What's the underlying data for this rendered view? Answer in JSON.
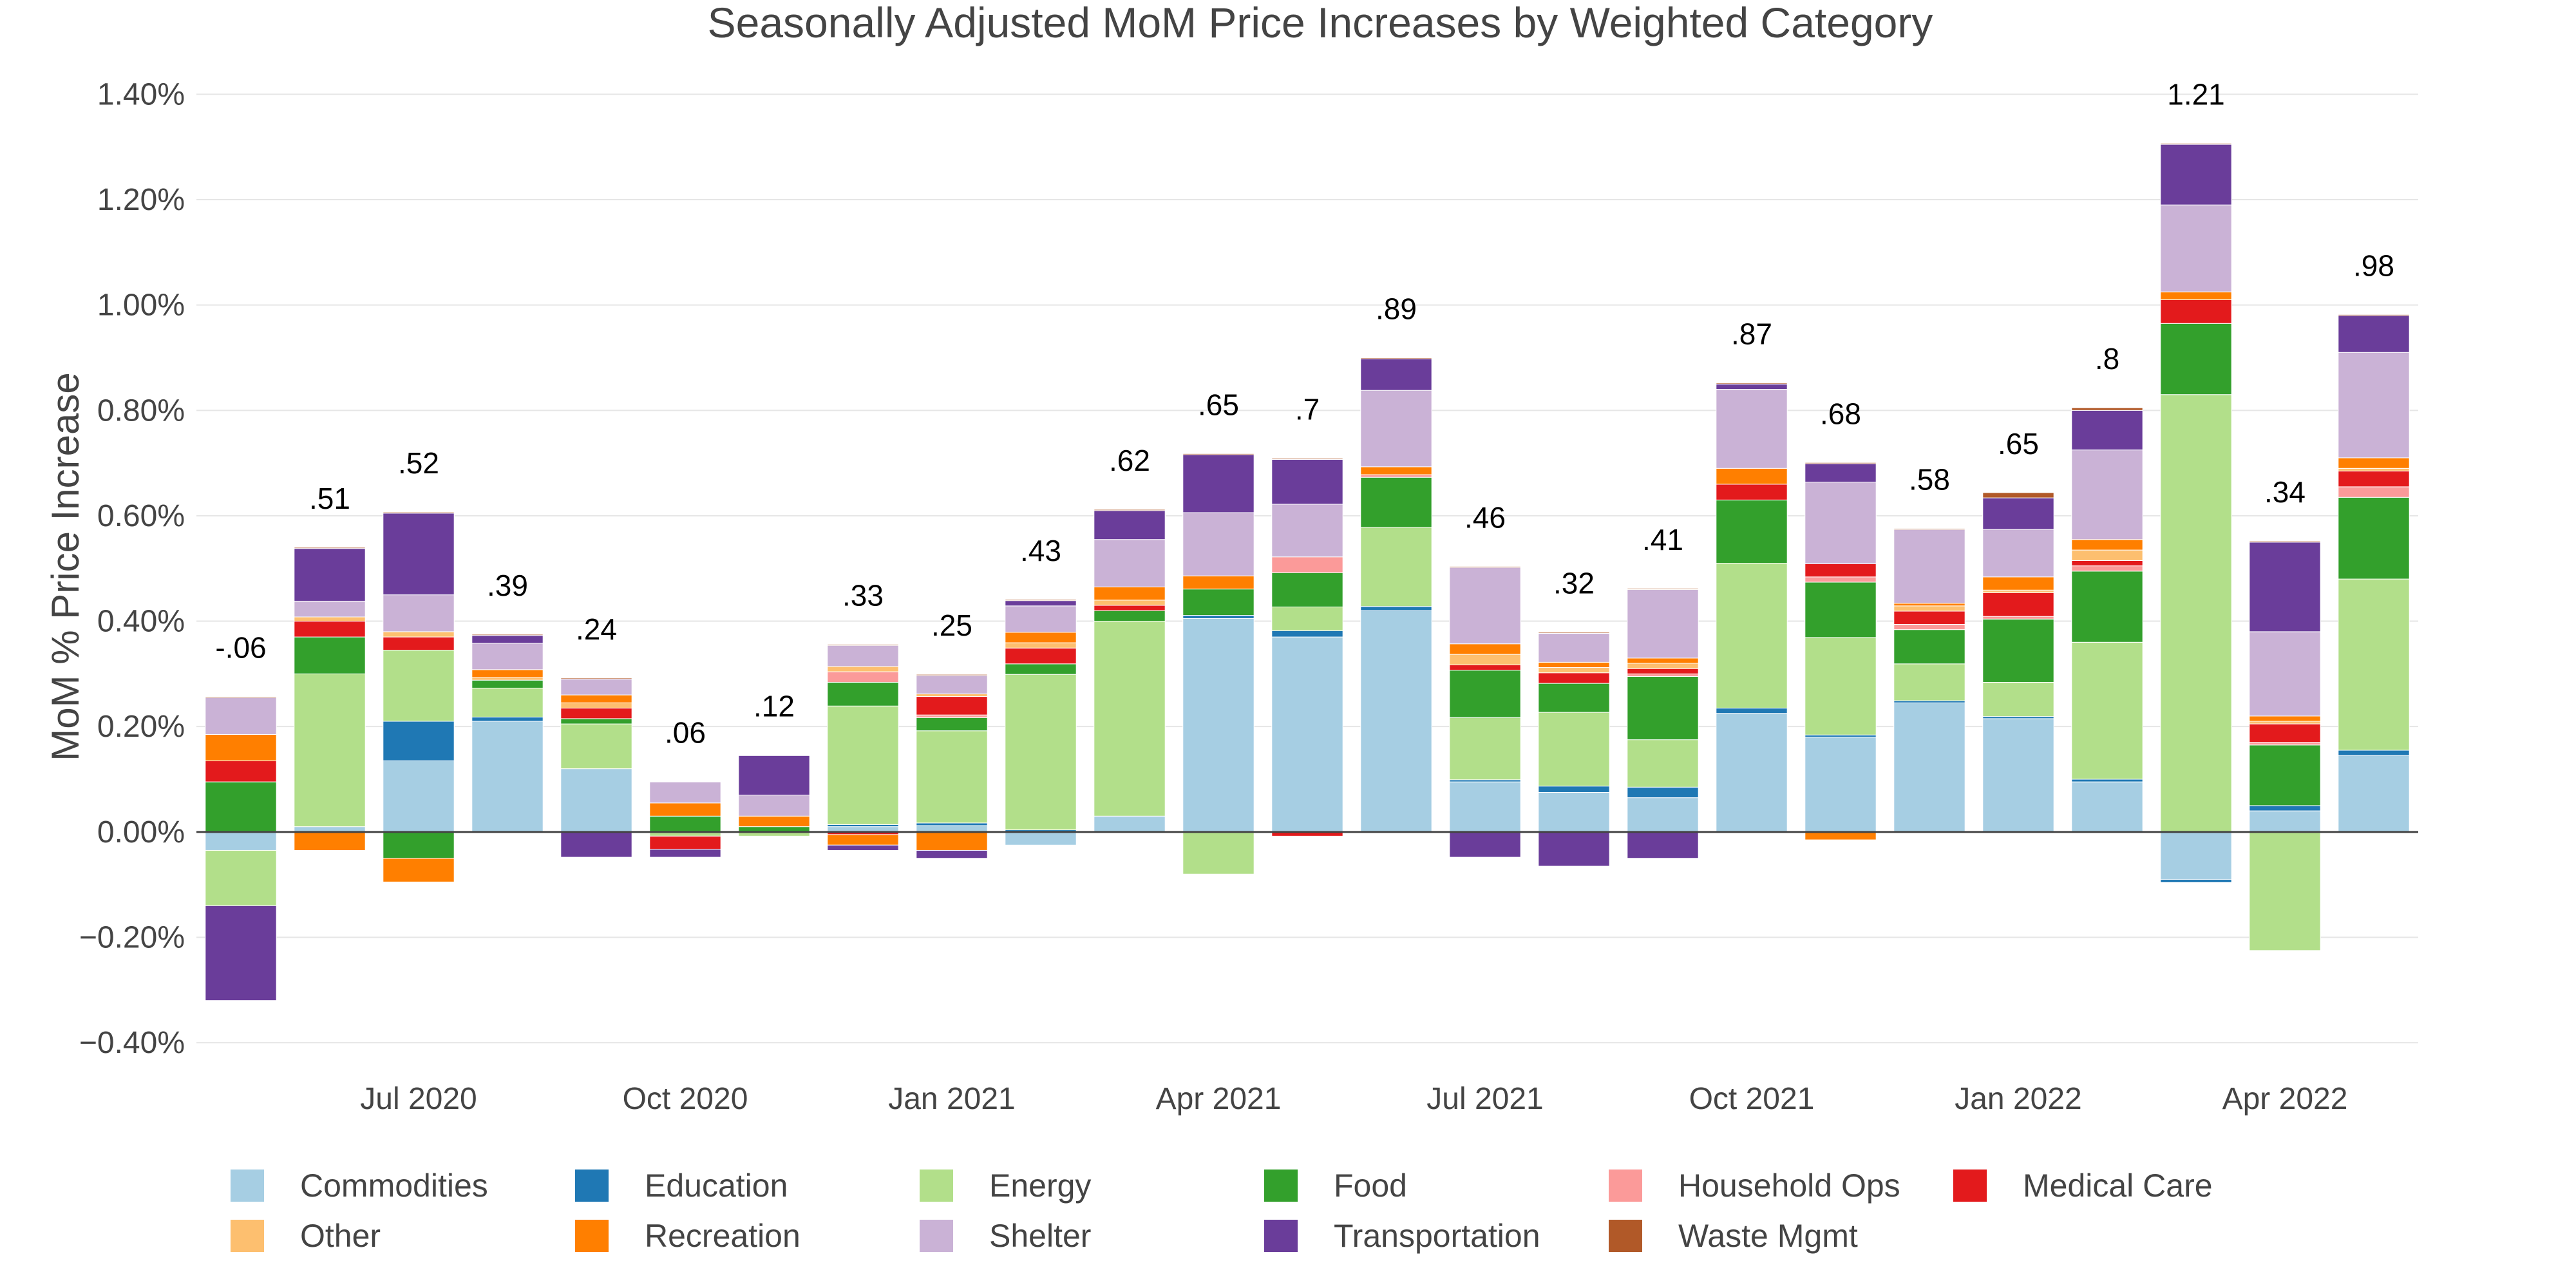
{
  "chart_data": {
    "type": "bar",
    "stacked": "relative",
    "title": "Seasonally Adjusted MoM Price Increases by Weighted Category",
    "xlabel": "",
    "ylabel": "MoM % Price Increase",
    "ylim": [
      -0.45,
      1.42
    ],
    "yticks": [
      -0.4,
      -0.2,
      0.0,
      0.2,
      0.4,
      0.6,
      0.8,
      1.0,
      1.2,
      1.4
    ],
    "ytick_labels": [
      "−0.40%",
      "−0.20%",
      "0.00%",
      "0.20%",
      "0.40%",
      "0.60%",
      "0.80%",
      "1.00%",
      "1.20%",
      "1.40%"
    ],
    "x_tick_positions": [
      2,
      5,
      8,
      11,
      14,
      17,
      20,
      23
    ],
    "x_tick_labels": [
      "Jul 2020",
      "Oct 2020",
      "Jan 2021",
      "Apr 2021",
      "Jul 2021",
      "Oct 2021",
      "Jan 2022",
      "Apr 2022"
    ],
    "categories": [
      "2020-05",
      "2020-06",
      "2020-07",
      "2020-08",
      "2020-09",
      "2020-10",
      "2020-11",
      "2020-12",
      "2021-01",
      "2021-02",
      "2021-03",
      "2021-04",
      "2021-05",
      "2021-06",
      "2021-07",
      "2021-08",
      "2021-09",
      "2021-10",
      "2021-11",
      "2021-12",
      "2022-01",
      "2022-02",
      "2022-03",
      "2022-04",
      "2022-05"
    ],
    "totals": [
      -0.06,
      0.51,
      0.52,
      0.39,
      0.24,
      0.06,
      0.12,
      0.33,
      0.25,
      0.43,
      0.62,
      0.65,
      0.7,
      0.89,
      0.46,
      0.32,
      0.41,
      0.87,
      0.68,
      0.58,
      0.65,
      0.8,
      1.21,
      0.34,
      0.98
    ],
    "total_labels": [
      "-.06",
      ".51",
      ".52",
      ".39",
      ".24",
      ".06",
      ".12",
      ".33",
      ".25",
      ".43",
      ".62",
      ".65",
      ".7",
      ".89",
      ".46",
      ".32",
      ".41",
      ".87",
      ".68",
      ".58",
      ".65",
      ".8",
      "1.21",
      ".34",
      ".98"
    ],
    "total_colors": {
      "positive": "#000000",
      "negative": "#d62728"
    },
    "legend_position": "bottom",
    "legend_rows": 2,
    "series": [
      {
        "name": "Commodities",
        "color": "#a6cee3",
        "values": [
          -0.035,
          0.01,
          0.135,
          0.21,
          0.12,
          0.0,
          0.0,
          0.01,
          0.012,
          -0.025,
          0.03,
          0.405,
          0.37,
          0.42,
          0.095,
          0.075,
          0.065,
          0.225,
          0.18,
          0.245,
          0.215,
          0.095,
          -0.09,
          0.04,
          0.145
        ]
      },
      {
        "name": "Education",
        "color": "#1f78b4",
        "values": [
          0.0,
          0.0,
          0.075,
          0.008,
          0.0,
          0.0,
          0.0,
          0.004,
          0.005,
          0.004,
          0.0,
          0.006,
          0.012,
          0.008,
          0.004,
          0.012,
          0.02,
          0.01,
          0.004,
          0.004,
          0.004,
          0.005,
          -0.006,
          0.01,
          0.01
        ]
      },
      {
        "name": "Energy",
        "color": "#b2df8a",
        "values": [
          -0.105,
          0.29,
          0.135,
          0.055,
          0.085,
          -0.008,
          -0.008,
          0.225,
          0.175,
          0.295,
          0.37,
          -0.08,
          0.045,
          0.15,
          0.118,
          0.14,
          0.09,
          0.275,
          0.185,
          0.07,
          0.065,
          0.26,
          0.83,
          -0.225,
          0.325
        ]
      },
      {
        "name": "Food",
        "color": "#33a02c",
        "values": [
          0.095,
          0.07,
          -0.05,
          0.015,
          0.01,
          0.03,
          0.01,
          0.045,
          0.025,
          0.02,
          0.02,
          0.05,
          0.065,
          0.095,
          0.09,
          0.055,
          0.12,
          0.12,
          0.105,
          0.065,
          0.12,
          0.135,
          0.135,
          0.115,
          0.155
        ]
      },
      {
        "name": "Household Ops",
        "color": "#fb9a99",
        "values": [
          0.0,
          0.0,
          0.0,
          0.0,
          0.0,
          0.0,
          0.0,
          0.02,
          0.005,
          0.0,
          0.0,
          0.0,
          0.03,
          0.005,
          0.0,
          0.0,
          0.005,
          0.0,
          0.01,
          0.01,
          0.005,
          0.01,
          0.0,
          0.005,
          0.02
        ]
      },
      {
        "name": "Medical Care",
        "color": "#e31a1c",
        "values": [
          0.04,
          0.03,
          0.025,
          0.0,
          0.02,
          -0.025,
          0.0,
          -0.005,
          0.035,
          0.03,
          0.01,
          0.0,
          -0.008,
          0.0,
          0.01,
          0.02,
          0.01,
          0.03,
          0.025,
          0.025,
          0.045,
          0.01,
          0.045,
          0.035,
          0.03
        ]
      },
      {
        "name": "Other",
        "color": "#fdbf6f",
        "values": [
          0.0,
          0.008,
          0.01,
          0.005,
          0.01,
          0.0,
          0.0,
          0.01,
          0.005,
          0.01,
          0.01,
          0.0,
          0.0,
          0.0,
          0.02,
          0.01,
          0.01,
          0.0,
          0.0,
          0.01,
          0.005,
          0.02,
          0.0,
          0.005,
          0.005
        ]
      },
      {
        "name": "Recreation",
        "color": "#ff7f00",
        "values": [
          0.05,
          -0.035,
          -0.045,
          0.015,
          0.015,
          0.025,
          0.02,
          -0.02,
          -0.035,
          0.02,
          0.025,
          0.025,
          0.0,
          0.015,
          0.02,
          0.01,
          0.01,
          0.03,
          -0.015,
          0.005,
          0.025,
          0.02,
          0.015,
          0.01,
          0.02
        ]
      },
      {
        "name": "Shelter",
        "color": "#cab2d6",
        "values": [
          0.07,
          0.03,
          0.07,
          0.05,
          0.03,
          0.04,
          0.04,
          0.04,
          0.035,
          0.05,
          0.09,
          0.12,
          0.1,
          0.145,
          0.145,
          0.055,
          0.13,
          0.15,
          0.155,
          0.14,
          0.09,
          0.17,
          0.165,
          0.16,
          0.2
        ]
      },
      {
        "name": "Transportation",
        "color": "#6a3d9a",
        "values": [
          -0.18,
          0.1,
          0.155,
          0.015,
          -0.048,
          -0.015,
          0.075,
          -0.01,
          -0.015,
          0.01,
          0.055,
          0.11,
          0.085,
          0.06,
          -0.048,
          -0.065,
          -0.05,
          0.01,
          0.035,
          0.0,
          0.06,
          0.075,
          0.115,
          0.17,
          0.07
        ]
      },
      {
        "name": "Waste Mgmt",
        "color": "#b15928",
        "values": [
          0.002,
          0.002,
          0.002,
          0.002,
          0.002,
          0.001,
          0.001,
          0.002,
          0.002,
          0.002,
          0.002,
          0.002,
          0.002,
          0.002,
          0.002,
          0.002,
          0.002,
          0.002,
          0.002,
          0.002,
          0.01,
          0.005,
          0.002,
          0.002,
          0.002
        ]
      }
    ]
  }
}
